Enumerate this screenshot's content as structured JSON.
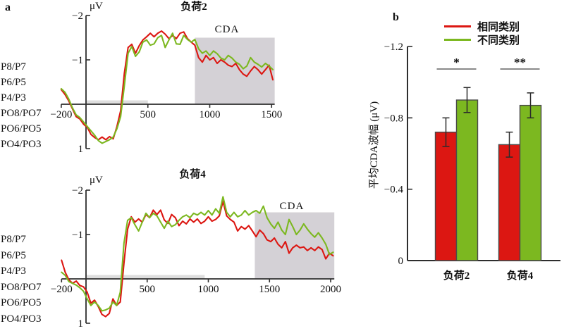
{
  "figure": {
    "panel_a": "a",
    "panel_b": "b"
  },
  "colors": {
    "red": "#dc1712",
    "green": "#7cb820",
    "cda_shade": "#d4d1d6",
    "stim_bar": "#dedede",
    "axis": "#2e2e2e",
    "bar_border": "#4a4a4a",
    "error_bar": "#2b2b2b",
    "sig_line": "#8a8a8a"
  },
  "chart_data": [
    {
      "type": "line",
      "id": "erp-load2",
      "title": "负荷2",
      "unit": "μV",
      "cda_label": "CDA",
      "electrodes": [
        "P8/P7",
        "P6/P5",
        "P4/P3",
        "PO8/PO7",
        "PO6/PO5",
        "PO4/PO3"
      ],
      "x_ticks": [
        {
          "t": -200,
          "label": "−200"
        },
        {
          "t": 500,
          "label": "500"
        },
        {
          "t": 1000,
          "label": "1000"
        },
        {
          "t": 1500,
          "label": "1500"
        }
      ],
      "y_ticks": [
        {
          "v": -2,
          "label": "−2"
        },
        {
          "v": -1,
          "label": "−1"
        },
        {
          "v": 1,
          "label": "1"
        }
      ],
      "xlim": [
        -200,
        1525
      ],
      "ylim": [
        -2,
        1
      ],
      "y_inverted": true,
      "grid": false,
      "cda_window_ms": [
        880,
        1525
      ],
      "cda_top_uv": -1.5,
      "stim_bar_ms": [
        0,
        500
      ],
      "series": [
        {
          "name": "相同类别",
          "color": "#dc1712",
          "t0": -200,
          "dt": 30,
          "uv": [
            -0.33,
            -0.22,
            -0.08,
            0.1,
            0.28,
            0.33,
            0.45,
            0.52,
            0.68,
            0.75,
            0.8,
            0.74,
            0.8,
            0.73,
            0.78,
            0.5,
            0.15,
            -0.7,
            -1.28,
            -1.35,
            -1.15,
            -1.32,
            -1.45,
            -1.52,
            -1.6,
            -1.52,
            -1.6,
            -1.65,
            -1.58,
            -1.48,
            -1.55,
            -1.48,
            -1.6,
            -1.63,
            -1.48,
            -1.4,
            -1.33,
            -1.05,
            -0.95,
            -1.1,
            -1.0,
            -1.05,
            -0.92,
            -1.0,
            -0.95,
            -0.88,
            -0.85,
            -0.92,
            -0.78,
            -0.68,
            -0.63,
            -0.75,
            -0.85,
            -0.78,
            -0.68,
            -0.78,
            -0.88,
            -0.55
          ]
        },
        {
          "name": "不同类别",
          "color": "#7cb820",
          "t0": -200,
          "dt": 30,
          "uv": [
            -0.35,
            -0.27,
            -0.12,
            0.08,
            0.24,
            0.3,
            0.4,
            0.5,
            0.6,
            0.7,
            0.82,
            0.88,
            0.84,
            0.8,
            0.74,
            0.55,
            0.28,
            -0.42,
            -1.15,
            -1.3,
            -1.08,
            -1.18,
            -1.4,
            -1.45,
            -1.33,
            -1.36,
            -1.5,
            -1.55,
            -1.28,
            -1.45,
            -1.6,
            -1.36,
            -1.35,
            -1.55,
            -1.46,
            -1.4,
            -1.46,
            -1.25,
            -1.15,
            -1.2,
            -1.1,
            -1.2,
            -1.14,
            -1.04,
            -1.0,
            -1.1,
            -1.04,
            -0.95,
            -0.9,
            -0.8,
            -0.86,
            -1.05,
            -0.95,
            -0.9,
            -0.84,
            -0.92,
            -0.86,
            -0.78
          ]
        }
      ]
    },
    {
      "type": "line",
      "id": "erp-load4",
      "title": "负荷4",
      "unit": "μV",
      "cda_label": "CDA",
      "electrodes": [
        "P8/P7",
        "P6/P5",
        "P4/P3",
        "PO8/PO7",
        "PO6/PO5",
        "PO4/PO3"
      ],
      "x_ticks": [
        {
          "t": -200,
          "label": "−200"
        },
        {
          "t": 500,
          "label": "500"
        },
        {
          "t": 1000,
          "label": "1000"
        },
        {
          "t": 1500,
          "label": "1500"
        },
        {
          "t": 2000,
          "label": "2000"
        }
      ],
      "y_ticks": [
        {
          "v": -2,
          "label": "−2"
        },
        {
          "v": -1,
          "label": "−1"
        },
        {
          "v": 1,
          "label": "1"
        }
      ],
      "xlim": [
        -200,
        2030
      ],
      "ylim": [
        -2,
        1
      ],
      "y_inverted": true,
      "grid": false,
      "cda_window_ms": [
        1380,
        2030
      ],
      "cda_top_uv": -1.5,
      "stim_bar_ms": [
        0,
        970
      ],
      "series": [
        {
          "name": "相同类别",
          "color": "#dc1712",
          "t0": -200,
          "dt": 30,
          "uv": [
            -0.42,
            -0.15,
            0.02,
            0.1,
            0.05,
            0.15,
            0.18,
            0.3,
            0.55,
            0.48,
            0.62,
            0.8,
            0.85,
            0.78,
            0.45,
            0.6,
            0.52,
            -0.35,
            -1.12,
            -1.4,
            -1.28,
            -1.35,
            -1.28,
            -1.45,
            -1.38,
            -1.55,
            -1.45,
            -1.55,
            -1.33,
            -1.25,
            -1.45,
            -1.38,
            -1.2,
            -1.3,
            -1.24,
            -1.35,
            -1.28,
            -1.35,
            -1.25,
            -1.3,
            -1.4,
            -1.3,
            -1.34,
            -1.42,
            -1.75,
            -1.42,
            -1.34,
            -1.28,
            -1.08,
            -1.18,
            -1.12,
            -1.2,
            -1.08,
            -0.95,
            -1.1,
            -1.02,
            -0.88,
            -0.84,
            -0.92,
            -0.78,
            -0.7,
            -0.84,
            -0.58,
            -0.7,
            -0.76,
            -0.7,
            -0.72,
            -0.64,
            -0.7,
            -0.64,
            -0.72,
            -0.66,
            -0.45,
            -0.58,
            -0.52
          ]
        },
        {
          "name": "不同类别",
          "color": "#7cb820",
          "t0": -200,
          "dt": 30,
          "uv": [
            -0.15,
            -0.08,
            0.06,
            0.1,
            0.14,
            0.2,
            0.28,
            0.45,
            0.6,
            0.52,
            0.6,
            0.72,
            0.7,
            0.66,
            0.52,
            0.6,
            0.3,
            -0.8,
            -1.32,
            -1.38,
            -1.22,
            -1.08,
            -1.28,
            -1.48,
            -1.38,
            -1.48,
            -1.42,
            -1.28,
            -1.14,
            -1.3,
            -1.18,
            -1.22,
            -1.32,
            -1.4,
            -1.44,
            -1.38,
            -1.48,
            -1.44,
            -1.5,
            -1.44,
            -1.54,
            -1.44,
            -1.58,
            -1.48,
            -1.85,
            -1.5,
            -1.4,
            -1.5,
            -1.4,
            -1.44,
            -1.54,
            -1.44,
            -1.5,
            -1.54,
            -1.48,
            -1.64,
            -1.38,
            -1.24,
            -1.14,
            -1.28,
            -1.1,
            -1.0,
            -1.34,
            -1.18,
            -1.0,
            -1.1,
            -1.24,
            -1.12,
            -1.02,
            -0.94,
            -1.04,
            -0.92,
            -0.78,
            -0.55,
            -0.6
          ]
        }
      ]
    },
    {
      "type": "bar",
      "id": "cda-amplitude",
      "ylabel": "平均CDA波幅 (μV)",
      "categories": [
        "负荷2",
        "负荷4"
      ],
      "series": [
        {
          "name": "相同类别",
          "color": "#dc1712",
          "values": [
            -0.72,
            -0.65
          ],
          "errors": [
            0.08,
            0.07
          ]
        },
        {
          "name": "不同类别",
          "color": "#7cb820",
          "values": [
            -0.9,
            -0.87
          ],
          "errors": [
            0.07,
            0.07
          ]
        }
      ],
      "significance": [
        {
          "category": "负荷2",
          "marker": "*"
        },
        {
          "category": "负荷4",
          "marker": "**"
        }
      ],
      "y_ticks": [
        {
          "v": -1.2,
          "label": "−1.2"
        },
        {
          "v": -0.8,
          "label": "−0.8"
        },
        {
          "v": -0.4,
          "label": "−0.4"
        },
        {
          "v": 0,
          "label": "0"
        }
      ],
      "ylim": [
        -1.2,
        0
      ],
      "y_inverted": true,
      "grid": false,
      "legend_position": "top-right"
    }
  ]
}
